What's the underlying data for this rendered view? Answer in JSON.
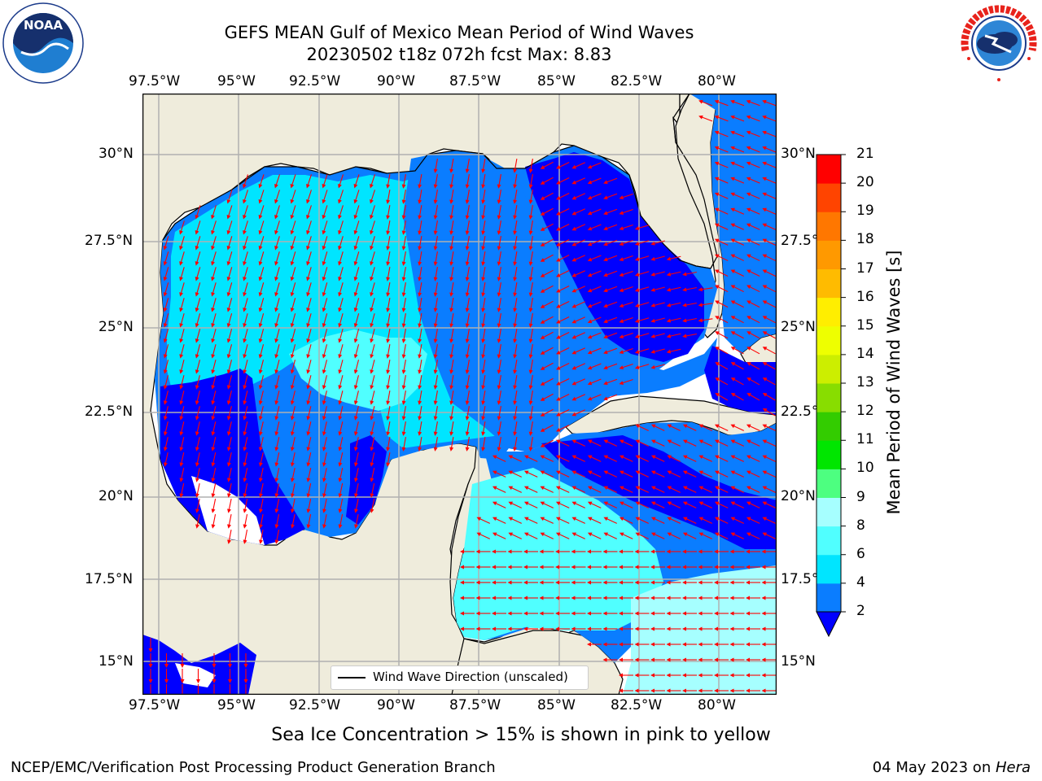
{
  "header": {
    "title_line1": "GEFS MEAN Gulf of Mexico Mean Period of Wind Waves",
    "title_line2": "20230502 t18z 072h fcst   Max: 8.83"
  },
  "logos": {
    "noaa_text": "NOAA",
    "noaa_ring_text": "NATIONAL OCEANIC AND ATMOSPHERIC ADMINISTRATION · U.S. DEPARTMENT OF COMMERCE",
    "nws_ring_text": "NATIONAL WEATHER SERVICE"
  },
  "map": {
    "lon_ticks": [
      "97.5°W",
      "95°W",
      "92.5°W",
      "90°W",
      "87.5°W",
      "85°W",
      "82.5°W",
      "80°W"
    ],
    "lat_ticks": [
      "30°N",
      "27.5°N",
      "25°N",
      "22.5°N",
      "20°N",
      "17.5°N",
      "15°N"
    ],
    "legend_label": "Wind Wave Direction (unscaled)",
    "colors": {
      "land": "#efecdc",
      "ocean_nodata": "#ffffff",
      "arrow": "#ff0000",
      "gridline": "#b0b0b0"
    }
  },
  "colorbar": {
    "label": "Mean Period of Wind Waves [s]",
    "ticks": [
      "2",
      "4",
      "6",
      "8",
      "9",
      "10",
      "11",
      "12",
      "13",
      "14",
      "15",
      "16",
      "17",
      "18",
      "19",
      "20",
      "21"
    ],
    "colors": [
      "#0000ff",
      "#0a7dff",
      "#00e5ff",
      "#50ffff",
      "#a6ffff",
      "#4dff80",
      "#00e600",
      "#33cc00",
      "#88dd00",
      "#ccee00",
      "#eeff00",
      "#ffee00",
      "#ffbb00",
      "#ff9900",
      "#ff7700",
      "#ff4400",
      "#ff0000"
    ]
  },
  "footer": {
    "sea_ice_note": "Sea Ice Concentration > 15% is shown in pink to yellow",
    "credit": "NCEP/EMC/Verification Post Processing Product Generation Branch",
    "date": "04 May 2023 on ",
    "machine": "Hera"
  }
}
